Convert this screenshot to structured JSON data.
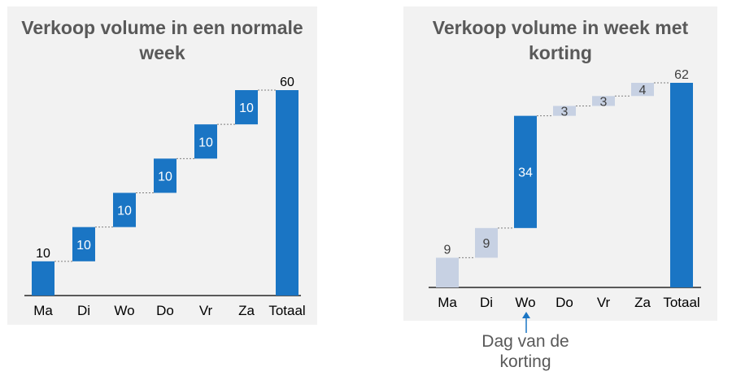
{
  "chart_data": [
    {
      "type": "waterfall",
      "title": "Verkoop volume in een normale week",
      "categories": [
        "Ma",
        "Di",
        "Wo",
        "Do",
        "Vr",
        "Za",
        "Totaal"
      ],
      "values": [
        10,
        10,
        10,
        10,
        10,
        10,
        60
      ],
      "total_index": 6,
      "ylim": [
        0,
        60
      ],
      "grid": false,
      "colors": {
        "bar": "#1a75c4",
        "label_inside": "#ffffff",
        "label_outside": "#000000"
      }
    },
    {
      "type": "waterfall",
      "title": "Verkoop volume in week met korting",
      "categories": [
        "Ma",
        "Di",
        "Wo",
        "Do",
        "Vr",
        "Za",
        "Totaal"
      ],
      "values": [
        9,
        9,
        34,
        3,
        3,
        4,
        62
      ],
      "total_index": 6,
      "highlight_index": 2,
      "ylim": [
        0,
        62
      ],
      "grid": false,
      "colors": {
        "bar": "#c7d1e3",
        "highlight": "#1a75c4",
        "label_inside": "#ffffff",
        "label_outside": "#404040"
      }
    }
  ],
  "annotation": {
    "text_line1": "Dag van de",
    "text_line2": "korting",
    "color": "#595959",
    "arrow_color": "#1a75c4"
  }
}
